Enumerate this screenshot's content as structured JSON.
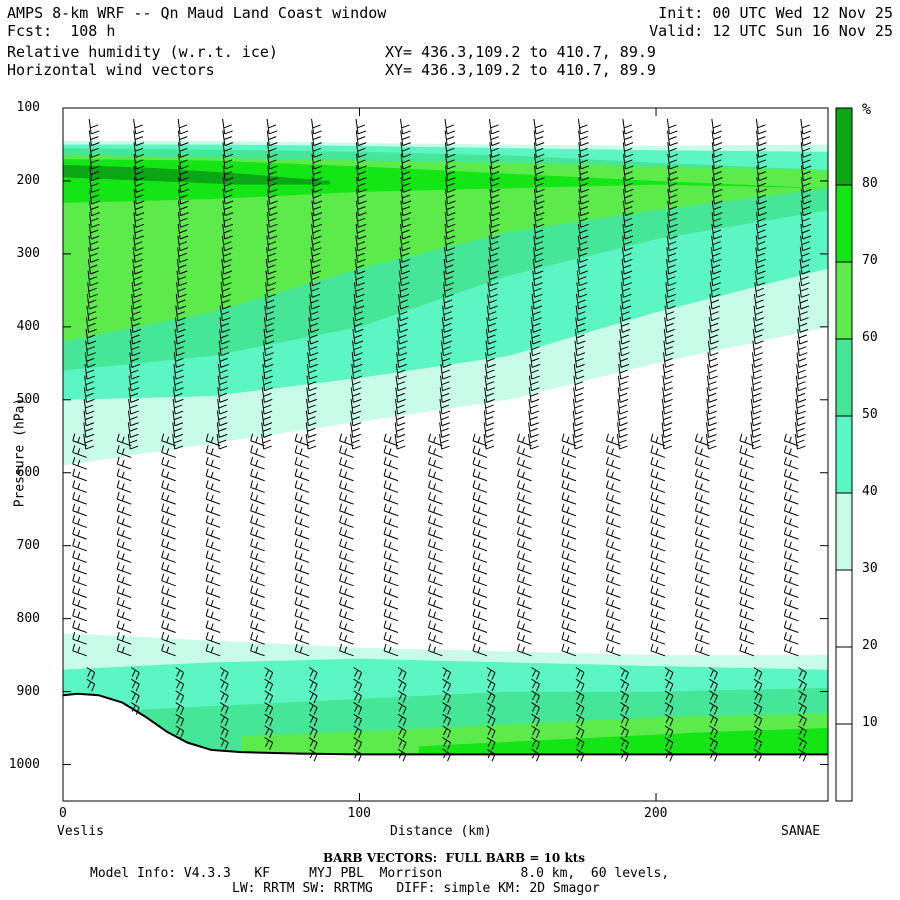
{
  "header": {
    "title": "AMPS 8-km WRF -- Qn Maud Land Coast window",
    "fcst": "Fcst:  108 h",
    "field1": "Relative humidity (w.r.t. ice)",
    "field2": "Horizontal wind vectors",
    "init": "Init: 00 UTC Wed 12 Nov 25",
    "valid": "Valid: 12 UTC Sun 16 Nov 25",
    "xy1": "XY= 436.3,109.2 to 410.7, 89.9",
    "xy2": "XY= 436.3,109.2 to 410.7, 89.9"
  },
  "footer": {
    "barb": "BARB VECTORS:  FULL BARB = 10 kts",
    "model1": "Model Info: V4.3.3   KF     MYJ PBL  Morrison          8.0 km,  60 levels,",
    "model2": "LW: RRTM SW: RRTMG   DIFF: simple KM: 2D Smagor"
  },
  "chart_data": {
    "type": "heatmap",
    "xlabel": "Distance (km)",
    "ylabel": "Pressure (hPa)",
    "x_ticks": [
      0,
      100,
      200
    ],
    "y_ticks": [
      100,
      200,
      300,
      400,
      500,
      600,
      700,
      800,
      900,
      1000
    ],
    "xlim": [
      0,
      258
    ],
    "ylim": [
      100,
      1050
    ],
    "left_endpoint": "Veslis",
    "right_endpoint": "SANAE",
    "colorbar": {
      "unit": "%",
      "ticks": [
        10,
        20,
        30,
        40,
        50,
        60,
        70,
        80
      ],
      "levels": [
        {
          "min": 0,
          "max": 30,
          "color": "#ffffff"
        },
        {
          "min": 30,
          "max": 40,
          "color": "#c8fce9"
        },
        {
          "min": 40,
          "max": 50,
          "color": "#5cf5c4"
        },
        {
          "min": 50,
          "max": 60,
          "color": "#46e699"
        },
        {
          "min": 60,
          "max": 70,
          "color": "#5dea4b"
        },
        {
          "min": 70,
          "max": 80,
          "color": "#14e616"
        },
        {
          "min": 80,
          "max": 90,
          "color": "#0aa614"
        }
      ]
    },
    "rh_bands": [
      {
        "level": 30,
        "x": [
          0,
          50,
          100,
          150,
          200,
          258
        ],
        "p_top": [
          145,
          145,
          148,
          150,
          152,
          150
        ],
        "p_bot": [
          590,
          560,
          530,
          500,
          450,
          400
        ]
      },
      {
        "level": 40,
        "x": [
          0,
          50,
          100,
          150,
          200,
          258
        ],
        "p_top": [
          150,
          150,
          152,
          155,
          158,
          160
        ],
        "p_bot": [
          500,
          495,
          470,
          440,
          380,
          320
        ]
      },
      {
        "level": 50,
        "x": [
          0,
          50,
          100,
          150,
          200,
          258
        ],
        "p_top": [
          155,
          157,
          160,
          165,
          175,
          185
        ],
        "p_bot": [
          460,
          440,
          400,
          330,
          280,
          240
        ]
      },
      {
        "level": 60,
        "x": [
          0,
          50,
          100,
          150,
          200,
          258
        ],
        "p_top": [
          165,
          168,
          172,
          175,
          180,
          185
        ],
        "p_bot": [
          420,
          380,
          320,
          270,
          240,
          210
        ]
      },
      {
        "level": 70,
        "x": [
          0,
          50,
          100,
          150,
          200,
          258
        ],
        "p_top": [
          170,
          172,
          180,
          190,
          200,
          210
        ],
        "p_bot": [
          230,
          225,
          215,
          210,
          205,
          210
        ]
      },
      {
        "level": 80,
        "x": [
          0,
          30,
          60,
          90
        ],
        "p_top": [
          178,
          182,
          190,
          200
        ],
        "p_bot": [
          195,
          200,
          205,
          205
        ]
      }
    ],
    "lower_bands": [
      {
        "level": 30,
        "x": [
          0,
          50,
          100,
          150,
          200,
          258
        ],
        "p_top": [
          820,
          830,
          840,
          845,
          850,
          850
        ],
        "p_bot": [
          1000,
          1000,
          1000,
          1000,
          1000,
          1000
        ]
      },
      {
        "level": 40,
        "x": [
          0,
          50,
          100,
          150,
          200,
          258
        ],
        "p_top": [
          870,
          860,
          855,
          860,
          865,
          870
        ],
        "p_bot": [
          1000,
          1000,
          1000,
          1000,
          1000,
          1000
        ]
      },
      {
        "level": 50,
        "x": [
          0,
          50,
          100,
          150,
          200,
          258
        ],
        "p_top": [
          930,
          920,
          910,
          900,
          900,
          895
        ],
        "p_bot": [
          1000,
          1000,
          1000,
          1000,
          1000,
          1000
        ]
      },
      {
        "level": 60,
        "x": [
          60,
          100,
          150,
          200,
          258
        ],
        "p_top": [
          960,
          955,
          945,
          935,
          930
        ],
        "p_bot": [
          1000,
          1000,
          1000,
          1000,
          1000
        ]
      },
      {
        "level": 70,
        "x": [
          120,
          170,
          220,
          258
        ],
        "p_top": [
          975,
          965,
          955,
          950
        ],
        "p_bot": [
          1000,
          1000,
          1000,
          1000
        ]
      }
    ],
    "terrain": {
      "x": [
        0,
        5,
        12,
        20,
        28,
        35,
        42,
        50,
        60,
        80,
        100,
        150,
        200,
        258
      ],
      "p": [
        905,
        903,
        905,
        915,
        935,
        955,
        970,
        980,
        983,
        985,
        986,
        986,
        986,
        986
      ]
    },
    "barb_columns_x": [
      8,
      23,
      38,
      53,
      68,
      83,
      98,
      113,
      128,
      143,
      158,
      173,
      188,
      203,
      218,
      233,
      248
    ]
  }
}
